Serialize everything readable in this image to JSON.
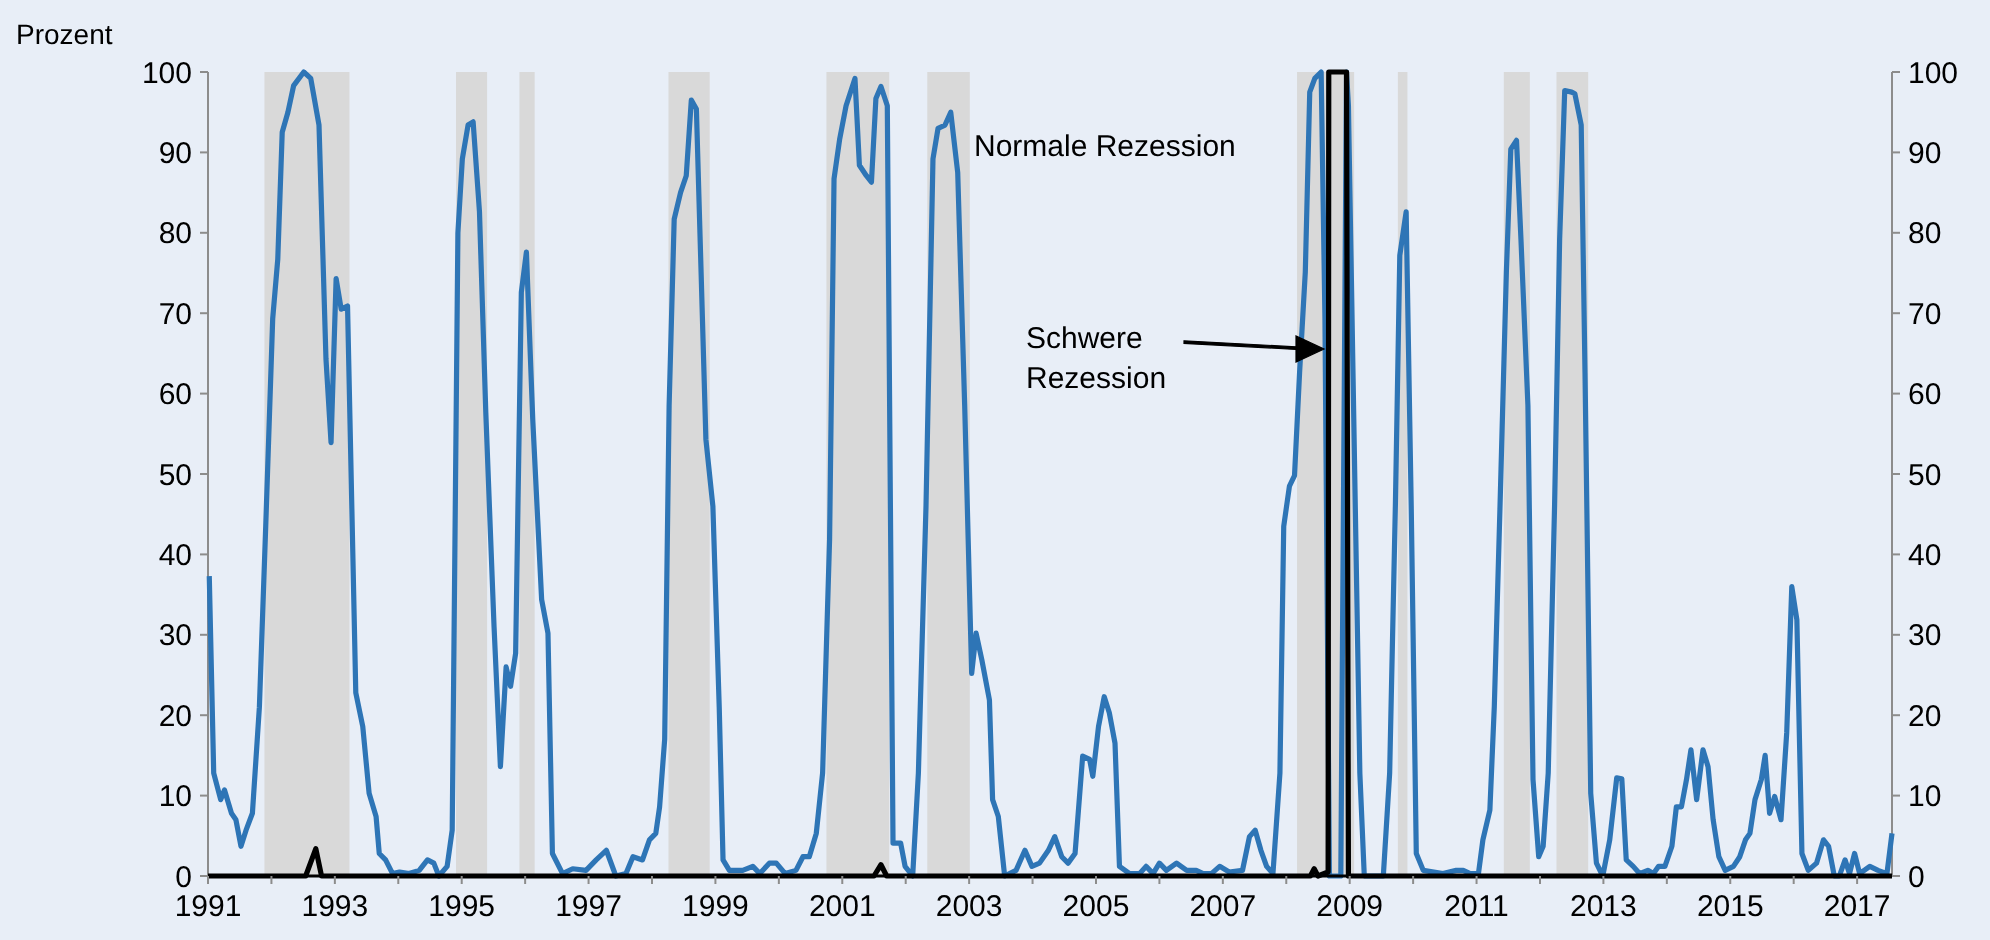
{
  "chart_data": {
    "type": "line",
    "ylabel": "Prozent",
    "xlim": [
      1991,
      2017.55
    ],
    "ylim": [
      0,
      100
    ],
    "y2lim": [
      0,
      100
    ],
    "xticks": [
      1991,
      {
        "value": 1992,
        "label": null
      },
      1993,
      {
        "value": 1994,
        "label": null
      },
      1995,
      {
        "value": 1996,
        "label": null
      },
      1997,
      {
        "value": 1998,
        "label": null
      },
      1999,
      {
        "value": 2000,
        "label": null
      },
      2001,
      {
        "value": 2002,
        "label": null
      },
      2003,
      {
        "value": 2004,
        "label": null
      },
      2005,
      {
        "value": 2006,
        "label": null
      },
      2007,
      {
        "value": 2008,
        "label": null
      },
      2009,
      {
        "value": 2010,
        "label": null
      },
      2011,
      {
        "value": 2012,
        "label": null
      },
      2013,
      {
        "value": 2014,
        "label": null
      },
      2015,
      {
        "value": 2016,
        "label": null
      },
      2017
    ],
    "yticks": [
      0,
      10,
      20,
      30,
      40,
      50,
      60,
      70,
      80,
      90,
      100
    ],
    "y2ticks": [
      0,
      10,
      20,
      30,
      40,
      50,
      60,
      70,
      80,
      90,
      100
    ],
    "grid": false,
    "bands": [
      {
        "axis": "x",
        "from": 1991.89,
        "to": 1993.23,
        "color": "#d9d9d9"
      },
      {
        "axis": "x",
        "from": 1994.91,
        "to": 1995.4,
        "color": "#d9d9d9"
      },
      {
        "axis": "x",
        "from": 1995.91,
        "to": 1996.15,
        "color": "#d9d9d9"
      },
      {
        "axis": "x",
        "from": 1998.26,
        "to": 1998.91,
        "color": "#d9d9d9"
      },
      {
        "axis": "x",
        "from": 2000.75,
        "to": 2001.74,
        "color": "#d9d9d9"
      },
      {
        "axis": "x",
        "from": 2002.34,
        "to": 2003.01,
        "color": "#d9d9d9"
      },
      {
        "axis": "x",
        "from": 2008.17,
        "to": 2009.07,
        "color": "#d9d9d9"
      },
      {
        "axis": "x",
        "from": 2009.76,
        "to": 2009.91,
        "color": "#d9d9d9"
      },
      {
        "axis": "x",
        "from": 2011.43,
        "to": 2011.84,
        "color": "#d9d9d9"
      },
      {
        "axis": "x",
        "from": 2012.26,
        "to": 2012.76,
        "color": "#d9d9d9"
      }
    ],
    "series": [
      {
        "name": "Normale Rezession",
        "color": "#2e75b6",
        "x": [
          1991.02,
          1991.09,
          1991.2,
          1991.26,
          1991.37,
          1991.44,
          1991.52,
          1991.6,
          1991.7,
          1991.81,
          1991.91,
          1992.02,
          1992.1,
          1992.17,
          1992.26,
          1992.35,
          1992.51,
          1992.62,
          1992.75,
          1992.86,
          1992.94,
          1993.02,
          1993.1,
          1993.2,
          1993.33,
          1993.44,
          1993.54,
          1993.65,
          1993.7,
          1993.8,
          1993.91,
          1994.02,
          1994.17,
          1994.33,
          1994.46,
          1994.56,
          1994.64,
          1994.77,
          1994.85,
          1994.94,
          1995.01,
          1995.1,
          1995.18,
          1995.28,
          1995.38,
          1995.51,
          1995.61,
          1995.7,
          1995.77,
          1995.85,
          1995.94,
          1996.02,
          1996.12,
          1996.26,
          1996.36,
          1996.43,
          1996.59,
          1996.75,
          1996.96,
          1997.12,
          1997.28,
          1997.43,
          1997.59,
          1997.7,
          1997.85,
          1997.96,
          1998.06,
          1998.12,
          1998.2,
          1998.27,
          1998.35,
          1998.45,
          1998.54,
          1998.62,
          1998.7,
          1998.85,
          1998.96,
          1999.06,
          1999.12,
          1999.22,
          1999.43,
          1999.59,
          1999.7,
          1999.85,
          1999.96,
          2000.1,
          2000.27,
          2000.38,
          2000.48,
          2000.59,
          2000.69,
          2000.8,
          2000.87,
          2000.96,
          2001.06,
          2001.2,
          2001.27,
          2001.38,
          2001.46,
          2001.53,
          2001.61,
          2001.71,
          2001.8,
          2001.92,
          2001.99,
          2002.11,
          2002.2,
          2002.32,
          2002.43,
          2002.51,
          2002.62,
          2002.71,
          2002.82,
          2002.93,
          2003.04,
          2003.11,
          2003.2,
          2003.32,
          2003.37,
          2003.46,
          2003.56,
          2003.74,
          2003.88,
          2003.99,
          2004.11,
          2004.25,
          2004.35,
          2004.46,
          2004.56,
          2004.67,
          2004.79,
          2004.9,
          2004.95,
          2005.04,
          2005.13,
          2005.21,
          2005.3,
          2005.37,
          2005.53,
          2005.69,
          2005.79,
          2005.9,
          2006.0,
          2006.11,
          2006.27,
          2006.43,
          2006.58,
          2006.69,
          2006.82,
          2006.95,
          2007.1,
          2007.31,
          2007.42,
          2007.51,
          2007.6,
          2007.69,
          2007.79,
          2007.9,
          2007.96,
          2008.05,
          2008.13,
          2008.21,
          2008.3,
          2008.37,
          2008.45,
          2008.55,
          2008.61,
          2008.68,
          2008.86,
          2008.95,
          2008.98,
          2009.07,
          2009.16,
          2009.23,
          2009.53,
          2009.63,
          2009.72,
          2009.79,
          2009.89,
          2009.97,
          2010.05,
          2010.16,
          2010.47,
          2010.68,
          2010.79,
          2010.9,
          2011.03,
          2011.1,
          2011.21,
          2011.28,
          2011.37,
          2011.47,
          2011.54,
          2011.63,
          2011.7,
          2011.81,
          2011.89,
          2011.98,
          2012.05,
          2012.13,
          2012.23,
          2012.31,
          2012.39,
          2012.5,
          2012.55,
          2012.65,
          2012.71,
          2012.8,
          2012.89,
          2012.99,
          2013.1,
          2013.21,
          2013.29,
          2013.36,
          2013.47,
          2013.57,
          2013.7,
          2013.79,
          2013.87,
          2013.97,
          2014.08,
          2014.15,
          2014.23,
          2014.31,
          2014.38,
          2014.47,
          2014.57,
          2014.65,
          2014.73,
          2014.82,
          2014.92,
          2015.05,
          2015.15,
          2015.24,
          2015.31,
          2015.39,
          2015.49,
          2015.55,
          2015.62,
          2015.7,
          2015.8,
          2015.89,
          2015.97,
          2016.05,
          2016.13,
          2016.23,
          2016.36,
          2016.47,
          2016.55,
          2016.64,
          2016.72,
          2016.81,
          2016.88,
          2016.96,
          2017.04,
          2017.2,
          2017.33,
          2017.47,
          2017.55
        ],
        "values": [
          37.3,
          12.8,
          9.5,
          10.7,
          7.8,
          7,
          3.7,
          5.7,
          7.8,
          21,
          43.5,
          69.3,
          76.7,
          92.5,
          95,
          98.3,
          100,
          99.2,
          93.4,
          64.3,
          53.9,
          74.3,
          70.5,
          70.9,
          22.8,
          18.6,
          10.3,
          7.4,
          2.8,
          2,
          0.3,
          0.5,
          0.3,
          0.7,
          2,
          1.6,
          0,
          1.2,
          5.7,
          80,
          89.2,
          93.4,
          93.8,
          82.6,
          57.6,
          31,
          13.6,
          26,
          23.6,
          27.7,
          72.6,
          77.6,
          56.8,
          34.4,
          30.2,
          2.8,
          0.3,
          0.9,
          0.7,
          2,
          3.2,
          0,
          0.3,
          2.4,
          2,
          4.5,
          5.3,
          8.6,
          17,
          58.5,
          81.7,
          85,
          87.1,
          96.5,
          95.4,
          54.3,
          46,
          21,
          2,
          0.7,
          0.7,
          1.2,
          0.3,
          1.6,
          1.6,
          0.3,
          0.7,
          2.4,
          2.4,
          5.3,
          12.8,
          41.9,
          86.7,
          91.7,
          95.8,
          99.2,
          88.4,
          87.1,
          86.3,
          96.7,
          98.2,
          95.8,
          4.1,
          4.1,
          1.2,
          0,
          12.8,
          46,
          89.2,
          93,
          93.4,
          95,
          87.5,
          58.5,
          25.2,
          30.2,
          26.9,
          21.9,
          9.5,
          7.4,
          0,
          0.7,
          3.2,
          1.2,
          1.6,
          3.2,
          4.9,
          2.4,
          1.6,
          2.8,
          14.9,
          14.5,
          12.4,
          18.6,
          22.3,
          20.3,
          16.5,
          1.2,
          0.3,
          0.3,
          1.2,
          0.3,
          1.6,
          0.7,
          1.6,
          0.7,
          0.7,
          0.3,
          0.3,
          1.2,
          0.5,
          0.7,
          4.9,
          5.7,
          3.2,
          1.2,
          0.3,
          12.8,
          43.5,
          48.5,
          49.8,
          62.6,
          75.1,
          97.5,
          99.2,
          100,
          69.3,
          0,
          0,
          100,
          95.8,
          54.3,
          12.8,
          0,
          0,
          12.8,
          46,
          77.2,
          82.6,
          46,
          2.8,
          0.7,
          0.3,
          0.7,
          0.7,
          0.3,
          0.3,
          4.5,
          8.2,
          21.1,
          46,
          75.1,
          90.4,
          91.5,
          79.2,
          58.5,
          12,
          2.4,
          3.7,
          12.8,
          46,
          79.2,
          97.7,
          97.5,
          97.3,
          93.4,
          62.6,
          10.3,
          1.6,
          0,
          4.5,
          12.2,
          12.1,
          2,
          1.2,
          0.3,
          0.7,
          0.3,
          1.2,
          1.2,
          3.7,
          8.6,
          8.6,
          12,
          15.7,
          9.5,
          15.7,
          13.6,
          7,
          2.4,
          0.7,
          1.2,
          2.4,
          4.5,
          5.3,
          9.5,
          12,
          15,
          7.8,
          9.9,
          7,
          17.8,
          36,
          31.9,
          2.8,
          0.7,
          1.6,
          4.5,
          3.7,
          0,
          0,
          2,
          0.3,
          2.8,
          0.3,
          1.2,
          0.7,
          0.3,
          5.3
        ]
      },
      {
        "name": "Schwere Rezession",
        "color": "#000000",
        "x": [
          1991,
          1992.54,
          1992.7,
          1992.79,
          2001.5,
          2001.61,
          2001.7,
          2008.38,
          2008.44,
          2008.5,
          2008.66,
          2008.67,
          2008.95,
          2008.98,
          2017.55
        ],
        "values": [
          0,
          0,
          3.4,
          0,
          0,
          1.4,
          0,
          0,
          0.9,
          0,
          0.5,
          100,
          100,
          0,
          0
        ]
      }
    ]
  }
}
